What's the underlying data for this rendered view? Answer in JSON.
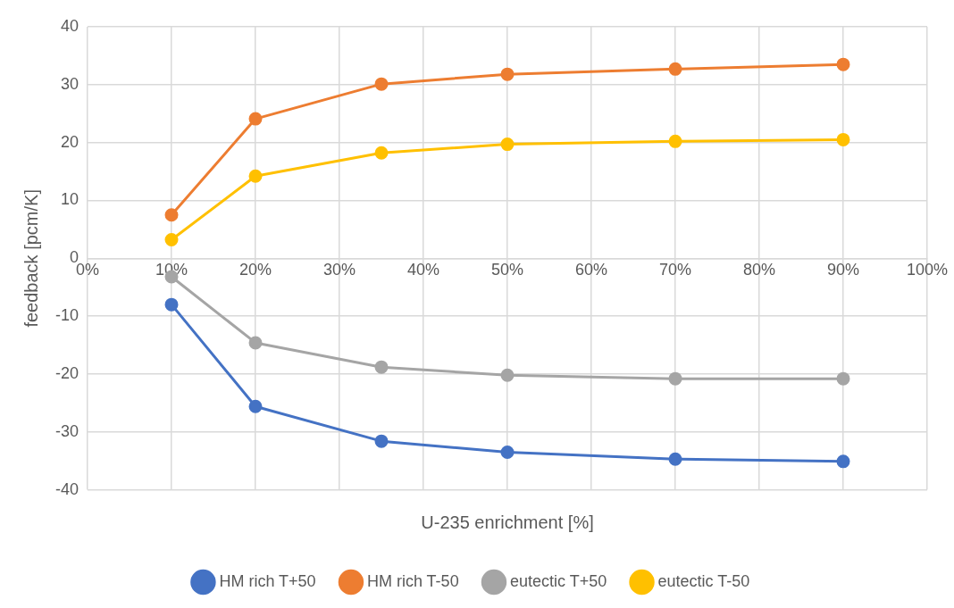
{
  "chart_data": {
    "type": "line",
    "xlabel": "U-235 enrichment [%]",
    "ylabel": "feedback [pcm/K]",
    "x": [
      10,
      20,
      35,
      50,
      70,
      90
    ],
    "xlim": [
      0,
      100
    ],
    "xticks": [
      {
        "value": 0,
        "label": "0%"
      },
      {
        "value": 10,
        "label": "10%"
      },
      {
        "value": 20,
        "label": "20%"
      },
      {
        "value": 30,
        "label": "30%"
      },
      {
        "value": 40,
        "label": "40%"
      },
      {
        "value": 50,
        "label": "50%"
      },
      {
        "value": 60,
        "label": "60%"
      },
      {
        "value": 70,
        "label": "70%"
      },
      {
        "value": 80,
        "label": "80%"
      },
      {
        "value": 90,
        "label": "90%"
      },
      {
        "value": 100,
        "label": "100%"
      }
    ],
    "ylim": [
      -40,
      40
    ],
    "yticks": [
      -40,
      -30,
      -20,
      -10,
      0,
      10,
      20,
      30,
      40
    ],
    "series": [
      {
        "name": "HM rich T+50",
        "color": "#4472c4",
        "values": [
          -8,
          -25.6,
          -31.6,
          -33.5,
          -34.7,
          -35.1
        ]
      },
      {
        "name": "HM rich T-50",
        "color": "#ed7d31",
        "values": [
          7.5,
          24.1,
          30.1,
          31.8,
          32.7,
          33.5
        ]
      },
      {
        "name": "eutectic T+50",
        "color": "#a5a5a5",
        "values": [
          -3.2,
          -14.6,
          -18.8,
          -20.2,
          -20.8,
          -20.8
        ]
      },
      {
        "name": "eutectic T-50",
        "color": "#ffc000",
        "values": [
          3.2,
          14.2,
          18.2,
          19.7,
          20.2,
          20.5
        ]
      }
    ],
    "grid": true,
    "legend": "bottom",
    "marker": "circle",
    "line_style": "solid"
  }
}
